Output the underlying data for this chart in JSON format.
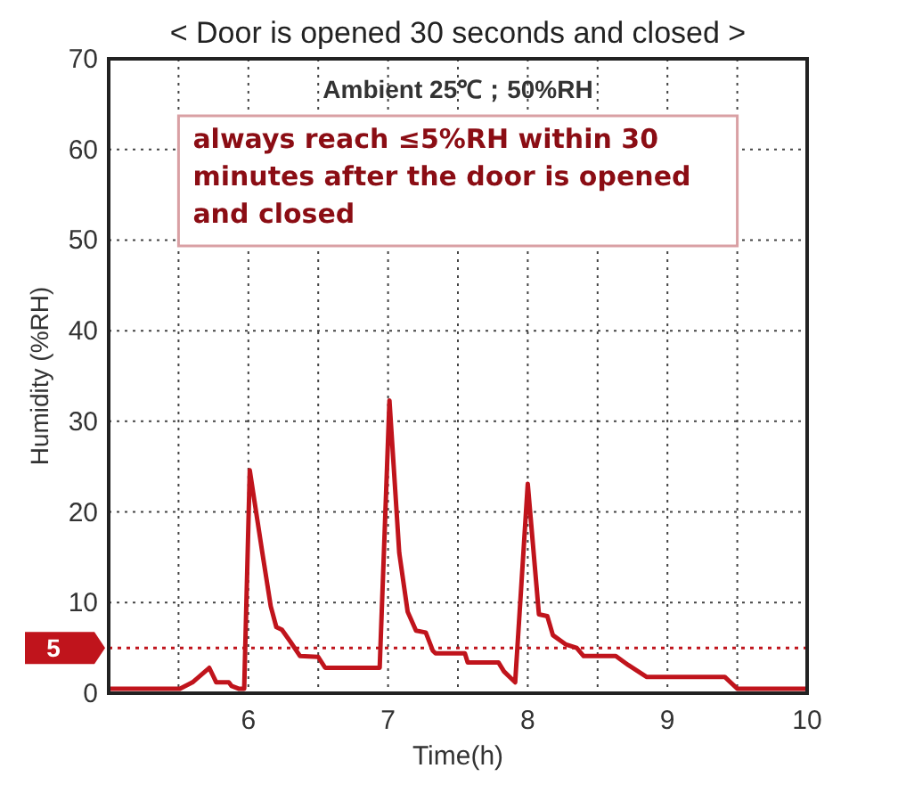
{
  "chart_data": {
    "type": "line",
    "title": "< Door is opened 30 seconds and closed >",
    "xlabel": "Time(h)",
    "ylabel": "Humidity (%RH)",
    "annotations": [
      "Ambient 25℃；50%RH",
      "always reach ≤5%RH within 30 minutes after the door is opened and closed"
    ],
    "xlim": [
      5,
      10
    ],
    "ylim": [
      0,
      70
    ],
    "xticks": [
      {
        "value": 5.5,
        "label": null
      },
      6,
      {
        "value": 6.5,
        "label": null
      },
      7,
      {
        "value": 7.5,
        "label": null
      },
      8,
      {
        "value": 8.5,
        "label": null
      },
      9,
      {
        "value": 9.5,
        "label": null
      },
      10
    ],
    "yticks": [
      0,
      10,
      20,
      30,
      40,
      50,
      60,
      70
    ],
    "grid": true,
    "marker": "none",
    "line_style": "solid",
    "ref_lines": [
      {
        "axis": "y",
        "value": 5,
        "label": "5",
        "color": "#c0141c",
        "line_style": "dotted"
      }
    ],
    "series": [
      {
        "color": "#c0141c",
        "x": [
          5,
          5.51,
          5.6,
          5.72,
          5.77,
          5.86,
          5.88,
          5.93,
          5.97,
          6.01,
          6.1,
          6.16,
          6.2,
          6.24,
          6.3,
          6.37,
          6.5,
          6.55,
          6.94,
          7.01,
          7.08,
          7.14,
          7.2,
          7.27,
          7.32,
          7.34,
          7.55,
          7.57,
          7.79,
          7.83,
          7.91,
          8.0,
          8.08,
          8.14,
          8.18,
          8.27,
          8.35,
          8.4,
          8.63,
          8.72,
          8.85,
          9.41,
          9.5,
          10
        ],
        "values": [
          0.5,
          0.5,
          1.2,
          2.8,
          1.2,
          1.2,
          0.8,
          0.5,
          0.5,
          24.6,
          15.5,
          9.6,
          7.3,
          7,
          5.7,
          4.1,
          4,
          2.8,
          2.8,
          32.3,
          15.5,
          9,
          6.9,
          6.7,
          4.7,
          4.4,
          4.4,
          3.4,
          3.4,
          2.4,
          1.2,
          23.1,
          8.7,
          8.5,
          6.4,
          5.4,
          5,
          4.1,
          4.1,
          3.1,
          1.8,
          1.8,
          0.5,
          0.5
        ]
      }
    ]
  }
}
